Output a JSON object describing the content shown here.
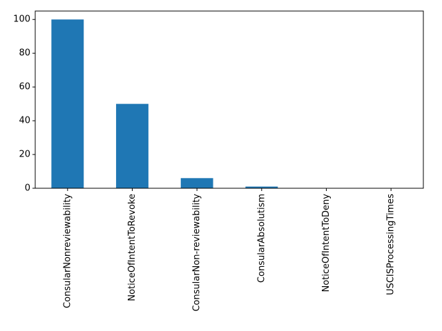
{
  "chart_data": {
    "type": "bar",
    "categories": [
      "ConsularNonreviewability",
      "NoticeOfIntentToRevoke",
      "ConsularNon-reviewability",
      "ConsularAbsolutism",
      "NoticeOfIntentToDeny",
      "USCISProcessingTimes"
    ],
    "values": [
      100,
      50,
      6,
      1,
      0,
      0
    ],
    "color": "#1f77b4",
    "ylim": [
      0,
      105
    ],
    "yticks": [
      0,
      20,
      40,
      60,
      80,
      100
    ],
    "grid": false
  }
}
